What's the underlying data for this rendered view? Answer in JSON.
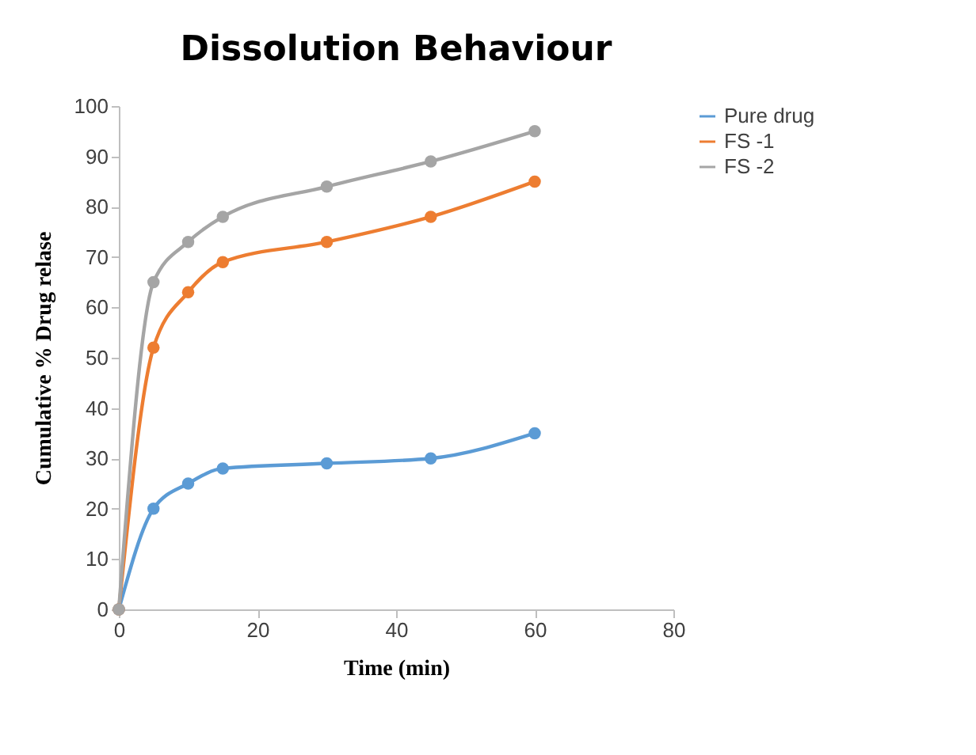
{
  "chart_data": {
    "type": "line",
    "title": "Dissolution Behaviour",
    "xlabel": "Time (min)",
    "ylabel": "Cumulative % Drug relase",
    "x": [
      0,
      5,
      10,
      15,
      30,
      45,
      60
    ],
    "series": [
      {
        "name": "Pure drug",
        "color": "#5b9bd5",
        "values": [
          0,
          20,
          25,
          28,
          29,
          30,
          35
        ]
      },
      {
        "name": "FS -1",
        "color": "#ed7d31",
        "values": [
          0,
          52,
          63,
          69,
          73,
          78,
          85
        ]
      },
      {
        "name": "FS -2",
        "color": "#a5a5a5",
        "values": [
          0,
          65,
          73,
          78,
          84,
          89,
          95
        ]
      }
    ],
    "xlim": [
      0,
      80
    ],
    "xticks": [
      0,
      20,
      40,
      60,
      80
    ],
    "ylim": [
      0,
      100
    ],
    "yticks": [
      0,
      10,
      20,
      30,
      40,
      50,
      60,
      70,
      80,
      90,
      100
    ],
    "grid": false,
    "legend": "right",
    "marker": "circle",
    "line_style": "solid"
  }
}
